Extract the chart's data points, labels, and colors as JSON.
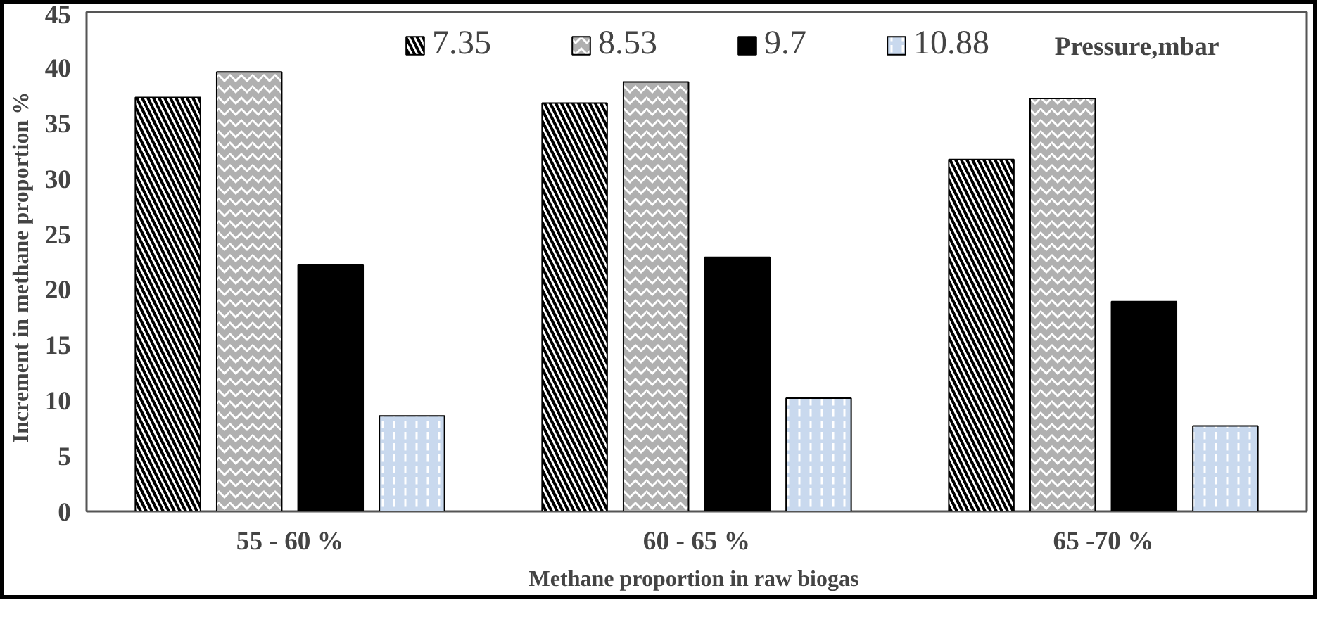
{
  "chart_data": {
    "type": "bar",
    "xlabel": "Methane proportion  in raw biogas",
    "ylabel": "Increment  in methane proportion  %",
    "legend_title": "Pressure,mbar",
    "categories": [
      "55 - 60 %",
      "60 - 65 %",
      "65 -70 %"
    ],
    "series": [
      {
        "name": "7.35",
        "color": "#000000",
        "values": [
          37.3,
          36.8,
          31.7
        ]
      },
      {
        "name": "8.53",
        "color": "#b0b0b0",
        "values": [
          39.6,
          38.7,
          37.2
        ]
      },
      {
        "name": "9.7",
        "color": "#000000",
        "values": [
          22.2,
          22.9,
          18.9
        ]
      },
      {
        "name": "10.88",
        "color": "#c9d9ee",
        "values": [
          8.6,
          10.2,
          7.7
        ]
      }
    ],
    "ylim": [
      0,
      45
    ],
    "yticks": [
      0,
      5,
      10,
      15,
      20,
      25,
      30,
      35,
      40,
      45
    ],
    "grid": false,
    "legend": "top"
  }
}
